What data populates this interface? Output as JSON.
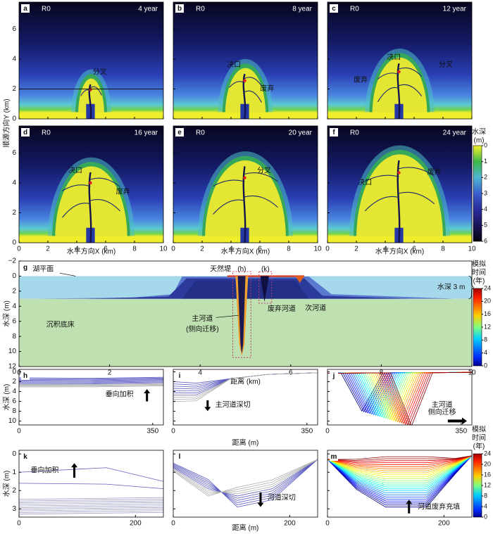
{
  "maps": {
    "panels": [
      {
        "letter": "a",
        "run": "R0",
        "time": "4 year",
        "notes": [
          "分叉"
        ]
      },
      {
        "letter": "b",
        "run": "R0",
        "time": "8 year",
        "notes": [
          "决口",
          "废弃"
        ]
      },
      {
        "letter": "c",
        "run": "R0",
        "time": "12 year",
        "notes": [
          "决口",
          "分叉",
          "废弃"
        ]
      },
      {
        "letter": "d",
        "run": "R0",
        "time": "16 year",
        "notes": [
          "决口",
          "废弃"
        ]
      },
      {
        "letter": "e",
        "run": "R0",
        "time": "20 year",
        "notes": [
          "分叉"
        ]
      },
      {
        "letter": "f",
        "run": "R0",
        "time": "24 year",
        "notes": [
          "决口",
          "废弃"
        ]
      }
    ],
    "y_label": "顺源方向Y (km)",
    "x_label": "水平方向X (km)",
    "xlim": [
      0,
      10
    ],
    "ylim": [
      0,
      7.8
    ],
    "xticks": [
      0,
      2,
      4,
      6,
      8,
      10
    ],
    "yticks": [
      0,
      2,
      4,
      6
    ]
  },
  "depth_colorbar": {
    "title": [
      "水深",
      "(m)"
    ],
    "lim": [
      0,
      6
    ],
    "ticks": [
      0,
      1,
      2,
      3,
      4,
      5,
      6
    ]
  },
  "section": {
    "letter": "g",
    "y_label": "水深 (m)",
    "x_label": "距离 (km)",
    "xlim": [
      0,
      10
    ],
    "ylim": [
      -2,
      12
    ],
    "xticks": [
      0,
      2,
      4,
      6,
      8,
      10
    ],
    "yticks": [
      {
        "value": -2,
        "label": "−2"
      },
      0,
      2,
      4,
      6,
      8,
      10,
      12
    ],
    "notes": {
      "lake": "湖平面",
      "levee": "天然堤",
      "h": "(h)",
      "k": "(k)",
      "water": "水深 3 m",
      "main": [
        "主河道",
        "(侧向迁移)"
      ],
      "abandoned": "废弃河道",
      "secondary": "次河道",
      "bed": "沉积底床"
    }
  },
  "time_colorbar": {
    "title": [
      "模拟",
      "时间",
      "(年)"
    ],
    "lim": [
      0,
      24
    ],
    "ticks": [
      0,
      4,
      8,
      12,
      16,
      20,
      24
    ]
  },
  "profiles": {
    "y_label": "水深 (m)",
    "x_label": "距离 (m)",
    "rows": [
      {
        "xlim": [
          0,
          378
        ],
        "ylim": [
          -0.5,
          10.8
        ],
        "yticks": [
          0,
          2,
          4,
          6,
          8,
          10
        ],
        "panels": [
          {
            "letter": "h",
            "notes": [
              "垂向加积"
            ],
            "xticks": [
              0,
              350
            ]
          },
          {
            "letter": "i",
            "notes": [
              "主河道深切"
            ],
            "xticks": [
              0,
              350
            ]
          },
          {
            "letter": "j",
            "notes": [
              "主河道",
              "侧向迁移"
            ],
            "xticks": [
              0,
              350
            ]
          }
        ]
      },
      {
        "xlim": [
          0,
          248
        ],
        "ylim": [
          -0.2,
          3.45
        ],
        "yticks": [
          0,
          1,
          2,
          3
        ],
        "panels": [
          {
            "letter": "k",
            "notes": [
              "垂向加积"
            ],
            "xticks": [
              0,
              200
            ]
          },
          {
            "letter": "l",
            "notes": [
              "河道深切"
            ],
            "xticks": [
              0,
              200
            ]
          },
          {
            "letter": "m",
            "notes": [
              "河道废弃充填"
            ],
            "xticks": [
              0,
              200
            ]
          }
        ]
      }
    ]
  }
}
